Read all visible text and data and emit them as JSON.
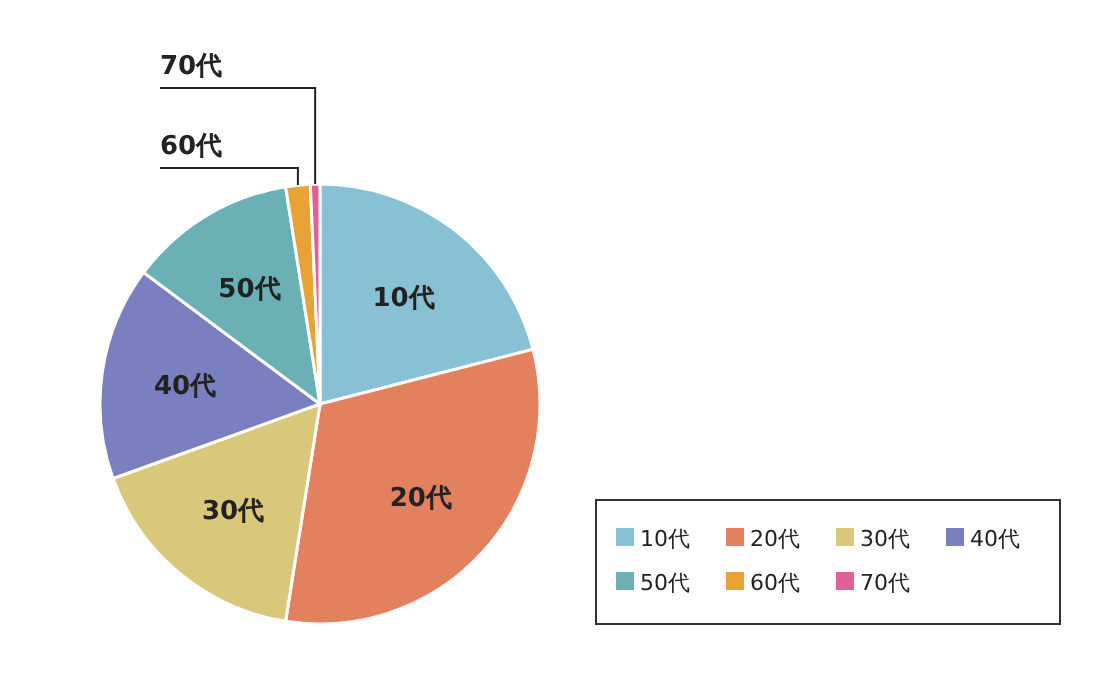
{
  "chart_data": {
    "type": "pie",
    "categories": [
      "10代",
      "20代",
      "30代",
      "40代",
      "50代",
      "60代",
      "70代"
    ],
    "values": [
      21,
      31.5,
      17,
      15.7,
      12.3,
      1.8,
      0.7
    ],
    "colors": [
      "#88c0d4",
      "#e3805e",
      "#d9c87a",
      "#7a7fc0",
      "#6ab0b4",
      "#e8a235",
      "#e0609a"
    ],
    "legend": "bottom right"
  }
}
